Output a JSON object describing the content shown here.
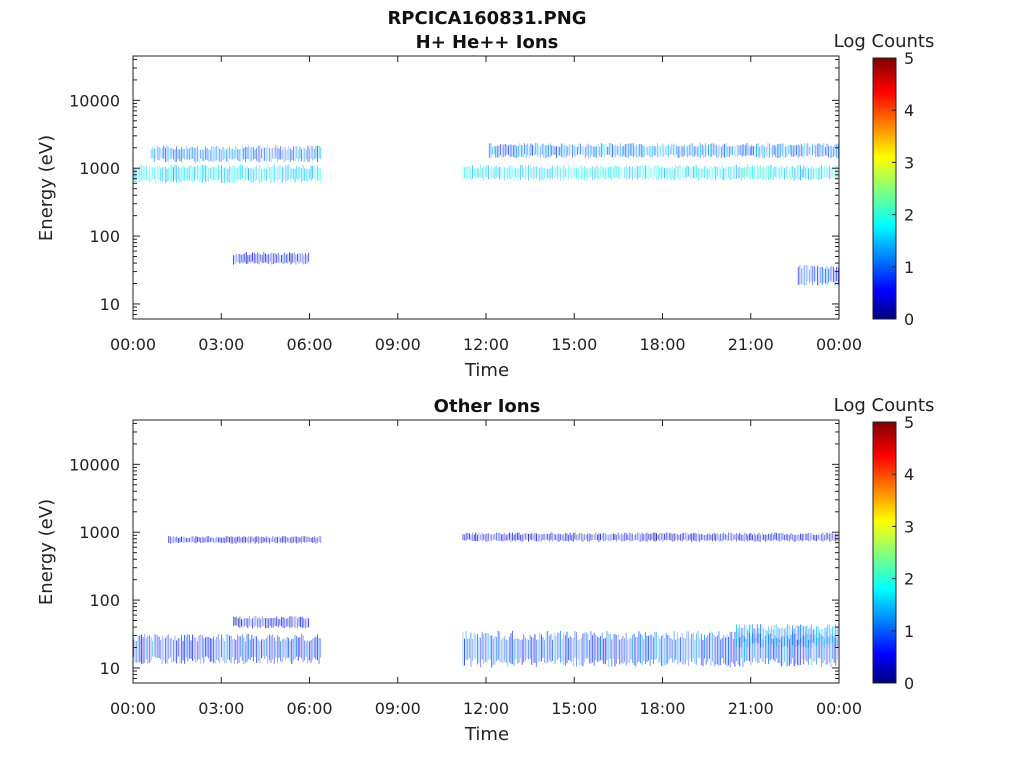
{
  "figure": {
    "filename": "RPCICA160831.PNG"
  },
  "chart_data": [
    {
      "type": "heatmap",
      "title": "H+ He++ Ions",
      "xlabel": "Time",
      "ylabel": "Energy (eV)",
      "x_range_hours": [
        0,
        24
      ],
      "x_tick_labels": [
        "00:00",
        "03:00",
        "06:00",
        "09:00",
        "12:00",
        "15:00",
        "18:00",
        "21:00",
        "00:00"
      ],
      "y_scale": "log",
      "ylim": [
        6,
        45000
      ],
      "y_tick_labels": [
        "10",
        "100",
        "1000",
        "10000"
      ],
      "colorbar": {
        "label": "Log Counts",
        "range": [
          0,
          5
        ],
        "tick_labels": [
          "0",
          "1",
          "2",
          "3",
          "4",
          "5"
        ]
      },
      "data_gap_hours": [
        6.4,
        11.2
      ],
      "bands": [
        {
          "t_start": 0.0,
          "t_end": 6.4,
          "e_low": 650,
          "e_high": 1050,
          "log_counts": 1.7
        },
        {
          "t_start": 0.6,
          "t_end": 6.4,
          "e_low": 1300,
          "e_high": 2000,
          "log_counts": 1.2
        },
        {
          "t_start": 3.4,
          "t_end": 6.0,
          "e_low": 40,
          "e_high": 55,
          "log_counts": 0.6
        },
        {
          "t_start": 11.2,
          "t_end": 24.0,
          "e_low": 700,
          "e_high": 1050,
          "log_counts": 1.8
        },
        {
          "t_start": 12.1,
          "t_end": 24.0,
          "e_low": 1500,
          "e_high": 2200,
          "log_counts": 1.2
        },
        {
          "t_start": 22.6,
          "t_end": 24.0,
          "e_low": 20,
          "e_high": 35,
          "log_counts": 0.9
        }
      ]
    },
    {
      "type": "heatmap",
      "title": "Other Ions",
      "xlabel": "Time",
      "ylabel": "Energy (eV)",
      "x_range_hours": [
        0,
        24
      ],
      "x_tick_labels": [
        "00:00",
        "03:00",
        "06:00",
        "09:00",
        "12:00",
        "15:00",
        "18:00",
        "21:00",
        "00:00"
      ],
      "y_scale": "log",
      "ylim": [
        6,
        45000
      ],
      "y_tick_labels": [
        "10",
        "100",
        "1000",
        "10000"
      ],
      "colorbar": {
        "label": "Log Counts",
        "range": [
          0,
          5
        ],
        "tick_labels": [
          "0",
          "1",
          "2",
          "3",
          "4",
          "5"
        ]
      },
      "data_gap_hours": [
        6.4,
        11.2
      ],
      "bands": [
        {
          "t_start": 0.0,
          "t_end": 6.4,
          "e_low": 13,
          "e_high": 28,
          "log_counts": 0.9
        },
        {
          "t_start": 1.2,
          "t_end": 6.4,
          "e_low": 700,
          "e_high": 850,
          "log_counts": 0.5
        },
        {
          "t_start": 3.4,
          "t_end": 6.0,
          "e_low": 40,
          "e_high": 55,
          "log_counts": 0.5
        },
        {
          "t_start": 11.2,
          "t_end": 24.0,
          "e_low": 12,
          "e_high": 30,
          "log_counts": 1.0
        },
        {
          "t_start": 11.2,
          "t_end": 24.0,
          "e_low": 750,
          "e_high": 950,
          "log_counts": 0.5
        },
        {
          "t_start": 20.5,
          "t_end": 24.0,
          "e_low": 22,
          "e_high": 40,
          "log_counts": 1.3
        }
      ]
    }
  ]
}
